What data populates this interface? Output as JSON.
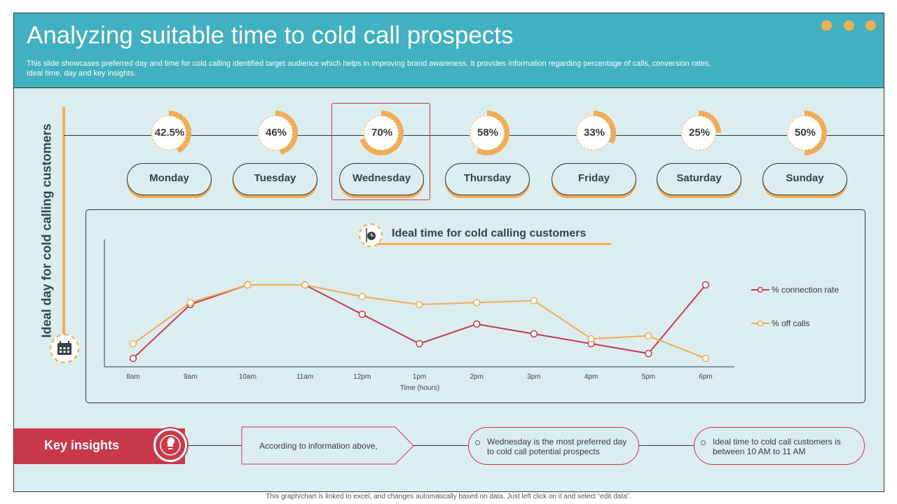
{
  "header": {
    "title": "Analyzing suitable time to cold call prospects",
    "subtitle": "This slide showcases preferred day and time for cold calling identified target audience which helps in improving brand awareness. It provides information regarding percentage of calls, conversion rates, ideal time, day and key insights."
  },
  "side_label": "Ideal day for cold calling customers",
  "days": [
    {
      "day": "Monday",
      "percent_label": "42.5%",
      "value": 42.5
    },
    {
      "day": "Tuesday",
      "percent_label": "46%",
      "value": 46
    },
    {
      "day": "Wednesday",
      "percent_label": "70%",
      "value": 70
    },
    {
      "day": "Thursday",
      "percent_label": "58%",
      "value": 58
    },
    {
      "day": "Friday",
      "percent_label": "33%",
      "value": 33
    },
    {
      "day": "Saturday",
      "percent_label": "25%",
      "value": 25
    },
    {
      "day": "Sunday",
      "percent_label": "50%",
      "value": 50
    }
  ],
  "chart_data": {
    "type": "line",
    "title": "Ideal time for cold calling customers",
    "xlabel": "Time (hours)",
    "ylabel": "",
    "x": [
      "8am",
      "9am",
      "10am",
      "11am",
      "12pm",
      "1pm",
      "2pm",
      "3pm",
      "4pm",
      "5pm",
      "6pm"
    ],
    "ylim": [
      0,
      100
    ],
    "grid": false,
    "legend": "right",
    "series": [
      {
        "name": "% connection rate",
        "color": "#c23b4e",
        "values": [
          5,
          60,
          80,
          80,
          50,
          20,
          40,
          30,
          20,
          10,
          80
        ]
      },
      {
        "name": "% off calls",
        "color": "#f0ad55",
        "values": [
          20,
          62,
          80,
          80,
          68,
          60,
          62,
          64,
          25,
          28,
          5
        ]
      }
    ]
  },
  "key_insights": {
    "label": "Key insights",
    "items": [
      "According to information above,",
      "Wednesday is the most preferred day to cold call potential prospects",
      "Ideal time to cold call customers is between 10 AM to 11 AM"
    ]
  },
  "footer": "This graph/chart is linked to excel, and changes automatically based on data. Just left click on it and select “edit data”.",
  "colors": {
    "accent": "#f0ad55",
    "header": "#41b0c0",
    "red": "#c93848"
  },
  "icons": {
    "side": "calendar-icon",
    "chart": "clock-icon",
    "insights": "lightbulb-icon"
  }
}
